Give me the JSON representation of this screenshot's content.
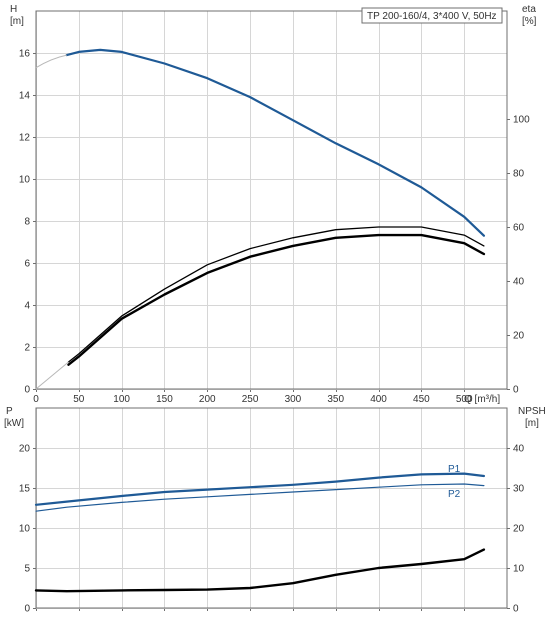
{
  "pump_label": "TP 200-160/4, 3*400 V, 50Hz",
  "colors": {
    "blue": "#1f5a96",
    "black": "#000000",
    "grid": "#d6d6d6",
    "frame": "#6f6f6f"
  },
  "chart_data": [
    {
      "type": "line",
      "panel": "top",
      "left_axis": {
        "label": "H",
        "unit": "[m]",
        "ylim": [
          0,
          18
        ],
        "ticks": [
          0,
          2,
          4,
          6,
          8,
          10,
          12,
          14,
          16
        ]
      },
      "right_axis": {
        "label": "eta",
        "unit": "[%]",
        "ylim": [
          0,
          140
        ],
        "ticks": [
          0,
          20,
          40,
          60,
          80,
          100
        ]
      },
      "x_axis": {
        "label": "Q [m³/h]",
        "xlim": [
          0,
          550
        ],
        "ticks": [
          0,
          50,
          100,
          150,
          200,
          250,
          300,
          350,
          400,
          450,
          500
        ]
      },
      "grid": true,
      "series": [
        {
          "id": "H",
          "axis": "left",
          "color": "#1f5a96",
          "x": [
            36,
            50,
            75,
            100,
            150,
            200,
            250,
            300,
            350,
            400,
            450,
            500,
            523
          ],
          "y": [
            15.9,
            16.05,
            16.15,
            16.05,
            15.5,
            14.8,
            13.9,
            12.8,
            11.7,
            10.7,
            9.6,
            8.2,
            7.3
          ]
        },
        {
          "id": "eta_p",
          "axis": "right",
          "color": "#000000",
          "x": [
            38,
            50,
            100,
            150,
            200,
            250,
            300,
            350,
            400,
            450,
            500,
            523
          ],
          "y": [
            10,
            13,
            27,
            37,
            46,
            52,
            56,
            59,
            60,
            60,
            57,
            53
          ]
        },
        {
          "id": "eta_total",
          "axis": "right",
          "color": "#000000",
          "x": [
            38,
            50,
            100,
            150,
            200,
            250,
            300,
            350,
            400,
            450,
            500,
            523
          ],
          "y": [
            9,
            12,
            26,
            35,
            43,
            49,
            53,
            56,
            57,
            57,
            54,
            50
          ]
        }
      ]
    },
    {
      "type": "line",
      "panel": "bottom",
      "left_axis": {
        "label": "P",
        "unit": "[kW]",
        "ylim": [
          0,
          25
        ],
        "ticks": [
          0,
          5,
          10,
          15,
          20
        ]
      },
      "right_axis": {
        "label": "NPSH",
        "unit": "[m]",
        "ylim": [
          0,
          50
        ],
        "ticks": [
          0,
          10,
          20,
          30,
          40
        ]
      },
      "x_axis": {
        "xlim": [
          0,
          550
        ],
        "ticks": [
          0,
          50,
          100,
          150,
          200,
          250,
          300,
          350,
          400,
          450,
          500
        ]
      },
      "grid": true,
      "series": [
        {
          "name": "P1",
          "axis": "left",
          "color": "#1f5a96",
          "x": [
            0,
            36,
            100,
            150,
            200,
            250,
            300,
            350,
            400,
            450,
            500,
            523
          ],
          "y": [
            12.9,
            13.3,
            14.0,
            14.5,
            14.8,
            15.1,
            15.4,
            15.8,
            16.3,
            16.7,
            16.8,
            16.5
          ]
        },
        {
          "name": "P2",
          "axis": "left",
          "color": "#1f5a96",
          "x": [
            0,
            36,
            100,
            150,
            200,
            250,
            300,
            350,
            400,
            450,
            500,
            523
          ],
          "y": [
            12.1,
            12.6,
            13.2,
            13.6,
            13.9,
            14.2,
            14.5,
            14.8,
            15.1,
            15.4,
            15.5,
            15.3
          ]
        },
        {
          "id": "NPSH",
          "axis": "right",
          "color": "#000000",
          "x": [
            0,
            36,
            100,
            150,
            200,
            250,
            300,
            350,
            400,
            450,
            500,
            523
          ],
          "y": [
            4.4,
            4.2,
            4.4,
            4.5,
            4.6,
            5.0,
            6.2,
            8.3,
            10.0,
            11.0,
            12.2,
            14.6
          ]
        }
      ]
    }
  ]
}
